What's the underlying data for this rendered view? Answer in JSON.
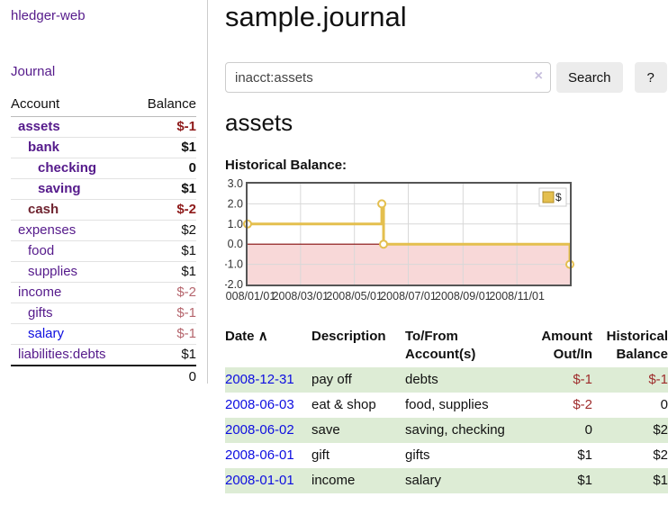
{
  "colors": {
    "link_purple": "#551a8b",
    "link_blue": "#0d0de0",
    "negative_strong": "#8f1b1b",
    "negative_faded": "#b5656d",
    "negative_table": "#9e2b2b",
    "row_green": "#ddecd5",
    "chart_line": "#e4bf4e",
    "chart_negative_bg": "#f8d8d8",
    "chart_zero_line": "#840c0c",
    "chart_border": "#555555",
    "chart_grid": "#d8d8d8"
  },
  "sidebar": {
    "brand": "hledger-web",
    "nav_journal": "Journal",
    "accounts_table": {
      "headers": [
        "Account",
        "Balance"
      ],
      "rows": [
        {
          "account": "assets",
          "indent": 1,
          "bold": true,
          "account_color": "purple",
          "balance": "$-1",
          "balance_class": "neg-strong"
        },
        {
          "account": "bank",
          "indent": 2,
          "bold": true,
          "account_color": "purple",
          "balance": "$1",
          "balance_class": "pos"
        },
        {
          "account": "checking",
          "indent": 3,
          "bold": true,
          "account_color": "purple",
          "balance": "0",
          "balance_class": "pos"
        },
        {
          "account": "saving",
          "indent": 3,
          "bold": true,
          "account_color": "purple",
          "balance": "$1",
          "balance_class": "pos"
        },
        {
          "account": "cash",
          "indent": 2,
          "bold": true,
          "account_color": "maroon",
          "balance": "$-2",
          "balance_class": "neg-strong"
        },
        {
          "account": "expenses",
          "indent": 1,
          "bold": false,
          "account_color": "purple",
          "balance": "$2",
          "balance_class": "pos"
        },
        {
          "account": "food",
          "indent": 2,
          "bold": false,
          "account_color": "purple",
          "balance": "$1",
          "balance_class": "pos"
        },
        {
          "account": "supplies",
          "indent": 2,
          "bold": false,
          "account_color": "purple",
          "balance": "$1",
          "balance_class": "pos"
        },
        {
          "account": "income",
          "indent": 1,
          "bold": false,
          "account_color": "purple",
          "balance": "$-2",
          "balance_class": "neg-faded"
        },
        {
          "account": "gifts",
          "indent": 2,
          "bold": false,
          "account_color": "purple",
          "balance": "$-1",
          "balance_class": "neg-faded"
        },
        {
          "account": "salary",
          "indent": 2,
          "bold": false,
          "account_color": "blue",
          "balance": "$-1",
          "balance_class": "neg-faded"
        },
        {
          "account": "liabilities:debts",
          "indent": 1,
          "bold": false,
          "account_color": "purple",
          "balance": "$1",
          "balance_class": "pos"
        }
      ],
      "total": "0"
    }
  },
  "main": {
    "title": "sample.journal",
    "search": {
      "value": "inacct:assets",
      "clear_icon": "×",
      "search_button": "Search",
      "help_button": "?"
    },
    "account_heading": "assets",
    "chart_title": "Historical Balance:"
  },
  "chart_data": {
    "type": "line",
    "step": "after",
    "title": "Historical Balance",
    "x_range": [
      "2008-01-01",
      "2008-12-31"
    ],
    "ylim": [
      -2.0,
      3.0
    ],
    "yticks": [
      "3.0",
      "2.0",
      "1.0",
      "0.0",
      "-1.0",
      "-2.0"
    ],
    "xticks": [
      {
        "label": "2008/01/01",
        "date": "2008-01-01"
      },
      {
        "label": "2008/03/01",
        "date": "2008-03-01"
      },
      {
        "label": "2008/05/01",
        "date": "2008-05-01"
      },
      {
        "label": "2008/07/01",
        "date": "2008-07-01"
      },
      {
        "label": "2008/09/01",
        "date": "2008-09-01"
      },
      {
        "label": "2008/11/01",
        "date": "2008-11-01"
      }
    ],
    "series": [
      {
        "name": "$",
        "points": [
          {
            "date": "2008-01-01",
            "value": 1
          },
          {
            "date": "2008-06-01",
            "value": 2
          },
          {
            "date": "2008-06-03",
            "value": 0
          },
          {
            "date": "2008-12-31",
            "value": -1
          }
        ]
      }
    ],
    "legend": {
      "label": "$",
      "position": "top-right"
    },
    "negative_region_shaded": true,
    "grid": true
  },
  "transactions": {
    "headers": {
      "date": "Date",
      "sort_icon": "∧",
      "description": "Description",
      "accounts": "To/From Account(s)",
      "amount": "Amount Out/In",
      "balance": "Historical Balance"
    },
    "rows": [
      {
        "date": "2008-12-31",
        "description": "pay off",
        "accounts": "debts",
        "amount": "$-1",
        "amount_negative": true,
        "balance": "$-1",
        "balance_negative": true,
        "highlight": true
      },
      {
        "date": "2008-06-03",
        "description": "eat & shop",
        "accounts": "food, supplies",
        "amount": "$-2",
        "amount_negative": true,
        "balance": "0",
        "balance_negative": false,
        "highlight": false
      },
      {
        "date": "2008-06-02",
        "description": "save",
        "accounts": "saving, checking",
        "amount": "0",
        "amount_negative": false,
        "balance": "$2",
        "balance_negative": false,
        "highlight": true
      },
      {
        "date": "2008-06-01",
        "description": "gift",
        "accounts": "gifts",
        "amount": "$1",
        "amount_negative": false,
        "balance": "$2",
        "balance_negative": false,
        "highlight": false
      },
      {
        "date": "2008-01-01",
        "description": "income",
        "accounts": "salary",
        "amount": "$1",
        "amount_negative": false,
        "balance": "$1",
        "balance_negative": false,
        "highlight": true
      }
    ]
  }
}
